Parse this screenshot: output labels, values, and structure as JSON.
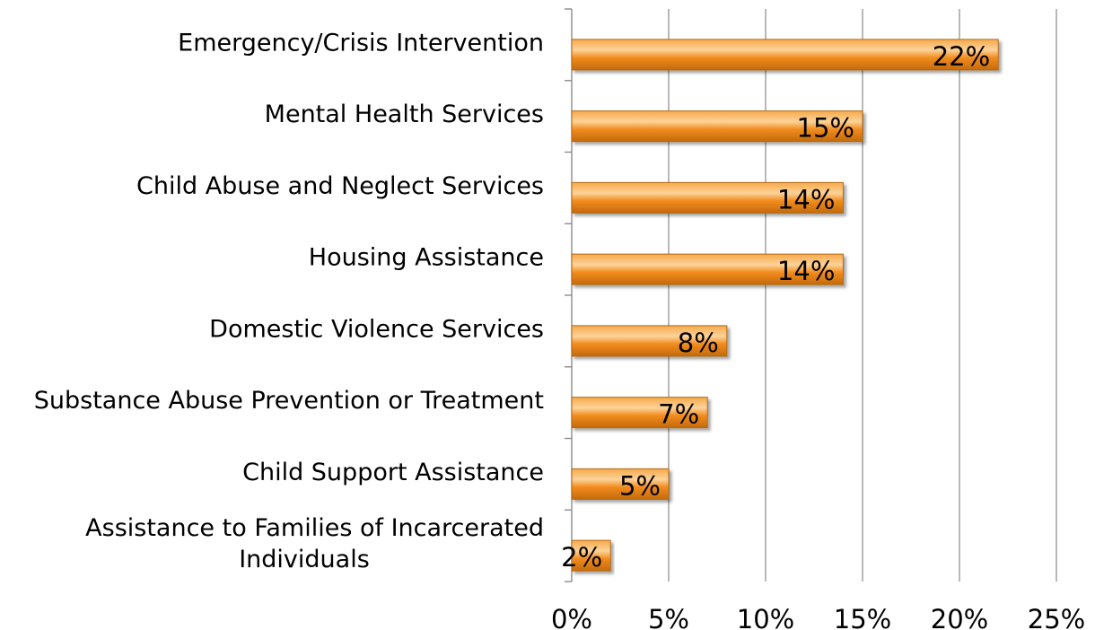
{
  "chart_data": {
    "type": "bar",
    "orientation": "horizontal",
    "categories": [
      [
        "Emergency/Crisis Intervention"
      ],
      [
        "Mental Health Services"
      ],
      [
        "Child Abuse and Neglect Services"
      ],
      [
        "Housing Assistance"
      ],
      [
        "Domestic Violence Services"
      ],
      [
        "Substance Abuse Prevention or Treatment"
      ],
      [
        "Child Support Assistance"
      ],
      [
        "Assistance to Families of Incarcerated",
        "Individuals"
      ]
    ],
    "values": [
      22,
      15,
      14,
      14,
      8,
      7,
      5,
      2
    ],
    "data_labels": [
      "22%",
      "15%",
      "14%",
      "14%",
      "8%",
      "7%",
      "5%",
      "2%"
    ],
    "xlim": [
      0,
      25
    ],
    "x_ticks": [
      0,
      5,
      10,
      15,
      20,
      25
    ],
    "x_tick_labels": [
      "0%",
      "5%",
      "10%",
      "15%",
      "20%",
      "25%"
    ],
    "grid": "vertical major gridlines",
    "legend": "none",
    "bar_color": "#f28c1e",
    "bar_highlight_color": "#fcd39a",
    "bar_shadow_color": "#c46a0c"
  }
}
